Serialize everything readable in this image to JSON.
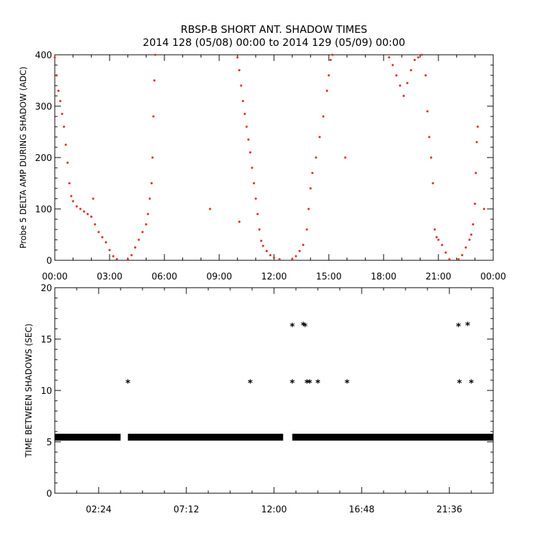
{
  "title": "RBSP-B SHORT ANT. SHADOW TIMES",
  "subtitle": "2014 128 (05/08) 00:00 to 2014 129 (05/09) 00:00",
  "chart_data": [
    {
      "type": "scatter",
      "ylabel": "Probe 5 DELTA AMP DURING SHADOW (ADC)",
      "xlabel": "",
      "x_unit": "hours",
      "xlim": [
        0,
        24
      ],
      "ylim": [
        0,
        400
      ],
      "xticks": [
        0,
        3,
        6,
        9,
        12,
        15,
        18,
        21,
        24
      ],
      "xtick_labels": [
        "00:00",
        "03:00",
        "06:00",
        "09:00",
        "12:00",
        "15:00",
        "18:00",
        "21:00",
        "00:00"
      ],
      "yticks": [
        0,
        100,
        200,
        300,
        400
      ],
      "ytick_labels": [
        "0",
        "100",
        "200",
        "300",
        "400"
      ],
      "marker": "dot",
      "color": "#e8321e",
      "series": [
        {
          "points": [
            [
              0.0,
              395
            ],
            [
              0.1,
              360
            ],
            [
              0.2,
              330
            ],
            [
              0.3,
              310
            ],
            [
              0.4,
              285
            ],
            [
              0.5,
              260
            ],
            [
              0.6,
              225
            ],
            [
              0.7,
              190
            ],
            [
              0.8,
              150
            ],
            [
              0.9,
              125
            ],
            [
              1.0,
              115
            ],
            [
              1.2,
              105
            ],
            [
              1.4,
              100
            ],
            [
              1.6,
              95
            ],
            [
              1.8,
              90
            ],
            [
              2.0,
              85
            ],
            [
              2.1,
              120
            ],
            [
              2.2,
              70
            ],
            [
              2.4,
              55
            ],
            [
              2.6,
              45
            ],
            [
              2.8,
              35
            ],
            [
              3.0,
              20
            ],
            [
              3.2,
              8
            ],
            [
              3.4,
              2
            ],
            [
              4.0,
              2
            ],
            [
              4.2,
              10
            ],
            [
              4.4,
              25
            ],
            [
              4.6,
              40
            ],
            [
              4.8,
              55
            ],
            [
              5.0,
              70
            ],
            [
              5.1,
              90
            ],
            [
              5.2,
              120
            ],
            [
              5.3,
              150
            ],
            [
              5.35,
              200
            ],
            [
              5.4,
              280
            ],
            [
              5.45,
              350
            ],
            [
              5.5,
              400
            ],
            [
              8.5,
              100
            ],
            [
              10.1,
              75
            ],
            [
              10.0,
              395
            ],
            [
              10.1,
              370
            ],
            [
              10.2,
              340
            ],
            [
              10.3,
              310
            ],
            [
              10.4,
              285
            ],
            [
              10.5,
              260
            ],
            [
              10.6,
              235
            ],
            [
              10.7,
              210
            ],
            [
              10.8,
              180
            ],
            [
              10.9,
              150
            ],
            [
              11.0,
              120
            ],
            [
              11.1,
              90
            ],
            [
              11.2,
              60
            ],
            [
              11.3,
              38
            ],
            [
              11.4,
              28
            ],
            [
              11.6,
              18
            ],
            [
              11.8,
              10
            ],
            [
              12.0,
              5
            ],
            [
              12.3,
              2
            ],
            [
              13.0,
              2
            ],
            [
              13.2,
              8
            ],
            [
              13.4,
              18
            ],
            [
              13.6,
              30
            ],
            [
              13.8,
              60
            ],
            [
              13.9,
              100
            ],
            [
              14.0,
              140
            ],
            [
              14.1,
              170
            ],
            [
              14.3,
              200
            ],
            [
              14.5,
              240
            ],
            [
              14.7,
              280
            ],
            [
              14.9,
              330
            ],
            [
              15.0,
              360
            ],
            [
              15.1,
              390
            ],
            [
              15.2,
              400
            ],
            [
              15.9,
              200
            ],
            [
              18.3,
              395
            ],
            [
              18.5,
              380
            ],
            [
              18.7,
              360
            ],
            [
              18.9,
              340
            ],
            [
              19.1,
              320
            ],
            [
              19.3,
              345
            ],
            [
              19.5,
              370
            ],
            [
              19.7,
              390
            ],
            [
              19.9,
              395
            ],
            [
              20.1,
              400
            ],
            [
              20.3,
              360
            ],
            [
              20.4,
              290
            ],
            [
              20.5,
              240
            ],
            [
              20.6,
              200
            ],
            [
              20.7,
              150
            ],
            [
              20.8,
              60
            ],
            [
              20.9,
              45
            ],
            [
              21.0,
              40
            ],
            [
              21.2,
              30
            ],
            [
              21.4,
              15
            ],
            [
              21.6,
              2
            ],
            [
              22.1,
              2
            ],
            [
              22.3,
              10
            ],
            [
              22.5,
              25
            ],
            [
              22.7,
              40
            ],
            [
              22.8,
              50
            ],
            [
              22.9,
              70
            ],
            [
              23.0,
              110
            ],
            [
              23.05,
              170
            ],
            [
              23.1,
              230
            ],
            [
              23.15,
              260
            ],
            [
              23.5,
              100
            ]
          ]
        }
      ]
    },
    {
      "type": "scatter",
      "ylabel": "TIME BETWEEN SHADOWS (SEC)",
      "xlabel": "",
      "x_unit": "hours",
      "xlim": [
        0,
        24
      ],
      "ylim": [
        0,
        20
      ],
      "xticks": [
        2.4,
        7.2,
        12.0,
        16.8,
        21.6
      ],
      "xtick_labels": [
        "02:24",
        "07:12",
        "12:00",
        "16:48",
        "21:36"
      ],
      "yticks": [
        0,
        5,
        10,
        15,
        20
      ],
      "ytick_labels": [
        "0",
        "5",
        "10",
        "15",
        "20"
      ],
      "marker": "asterisk",
      "color": "#000000",
      "baseline": {
        "value": 5.45,
        "segments": [
          [
            0.0,
            3.6
          ],
          [
            4.0,
            12.5
          ],
          [
            13.0,
            24.0
          ]
        ]
      },
      "series": [
        {
          "points": [
            [
              4.0,
              10.8
            ],
            [
              10.7,
              10.8
            ],
            [
              13.0,
              16.3
            ],
            [
              13.0,
              10.8
            ],
            [
              13.6,
              16.4
            ],
            [
              13.7,
              16.3
            ],
            [
              13.8,
              10.8
            ],
            [
              13.95,
              10.8
            ],
            [
              14.4,
              10.8
            ],
            [
              16.0,
              10.8
            ],
            [
              22.1,
              16.3
            ],
            [
              22.15,
              10.8
            ],
            [
              22.6,
              16.4
            ],
            [
              22.8,
              10.8
            ]
          ]
        }
      ]
    }
  ]
}
